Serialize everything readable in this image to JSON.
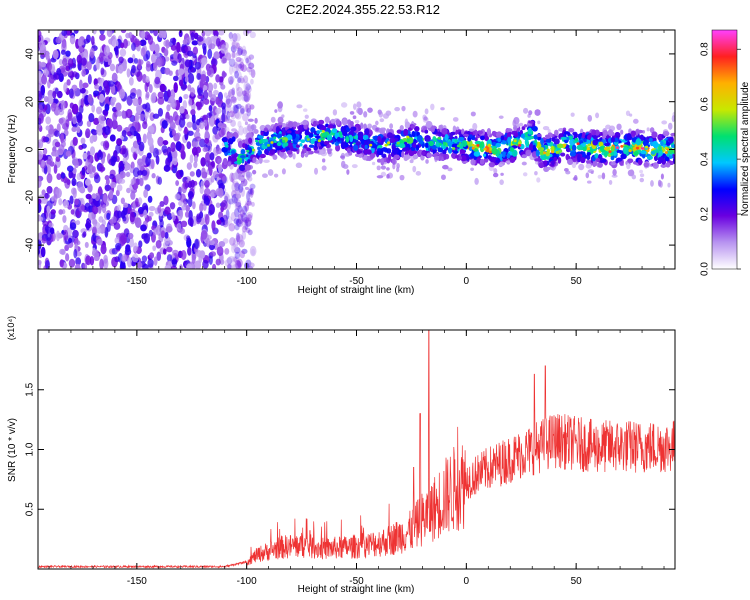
{
  "title": "C2E2.2024.355.22.53.R12",
  "chart_data": [
    {
      "type": "heatmap",
      "xlabel": "Height of straight line (km)",
      "ylabel": "Frequency (Hz)",
      "xlim": [
        -195,
        95
      ],
      "ylim": [
        -50,
        50
      ],
      "xticks": [
        -150,
        -100,
        -50,
        0,
        50
      ],
      "yticks": [
        -40,
        -20,
        0,
        20,
        40
      ],
      "colorbar": {
        "label": "Normalized spectral amplitude",
        "range": [
          0.0,
          0.87
        ],
        "ticks": [
          "0.0",
          "0.2",
          "0.4",
          "0.6",
          "0.8"
        ],
        "colormap": [
          "#ffffff",
          "#b894f0",
          "#6a00e0",
          "#0000ff",
          "#00c8ff",
          "#00e070",
          "#c8e800",
          "#ffb000",
          "#ff2020",
          "#ff40ff"
        ]
      },
      "features": {
        "noise_region_x": [
          -195,
          -105
        ],
        "signal_center_hz": [
          [
            -105,
            -6
          ],
          [
            -95,
            2
          ],
          [
            -85,
            4
          ],
          [
            -75,
            4
          ],
          [
            -65,
            6
          ],
          [
            -55,
            5
          ],
          [
            -45,
            3
          ],
          [
            -35,
            1
          ],
          [
            -25,
            4
          ],
          [
            -15,
            3
          ],
          [
            -5,
            2
          ],
          [
            5,
            1
          ],
          [
            15,
            0
          ],
          [
            25,
            3
          ],
          [
            30,
            6
          ],
          [
            35,
            -2
          ],
          [
            45,
            2
          ],
          [
            55,
            1
          ],
          [
            65,
            0
          ],
          [
            75,
            1
          ],
          [
            85,
            0
          ],
          [
            95,
            0
          ]
        ]
      }
    },
    {
      "type": "line",
      "xlabel": "Height of straight line (km)",
      "ylabel": "SNR (10 * v/v)",
      "y_multiplier": "(x10⁴)",
      "xlim": [
        -195,
        95
      ],
      "ylim": [
        0,
        2.0
      ],
      "xticks": [
        -150,
        -100,
        -50,
        0,
        50
      ],
      "yticks": [
        0.5,
        1.0,
        1.5
      ],
      "series_color": "#ee3333",
      "envelope": [
        [
          -195,
          0.02
        ],
        [
          -110,
          0.02
        ],
        [
          -100,
          0.06
        ],
        [
          -95,
          0.12
        ],
        [
          -85,
          0.18
        ],
        [
          -75,
          0.2
        ],
        [
          -65,
          0.17
        ],
        [
          -55,
          0.18
        ],
        [
          -45,
          0.2
        ],
        [
          -35,
          0.24
        ],
        [
          -25,
          0.32
        ],
        [
          -20,
          0.42
        ],
        [
          -15,
          0.5
        ],
        [
          -10,
          0.6
        ],
        [
          -5,
          0.68
        ],
        [
          0,
          0.74
        ],
        [
          10,
          0.84
        ],
        [
          20,
          0.92
        ],
        [
          30,
          1.0
        ],
        [
          40,
          1.08
        ],
        [
          50,
          1.05
        ],
        [
          60,
          1.02
        ],
        [
          70,
          1.03
        ],
        [
          80,
          1.02
        ],
        [
          95,
          1.03
        ]
      ],
      "spikes": [
        [
          -17,
          2.0
        ],
        [
          -21,
          1.3
        ],
        [
          -24,
          0.85
        ],
        [
          36,
          1.7
        ],
        [
          31,
          1.63
        ]
      ]
    }
  ]
}
